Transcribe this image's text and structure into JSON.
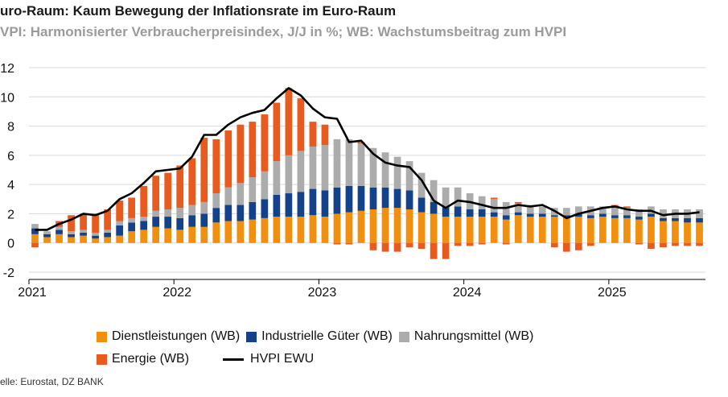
{
  "title": "uro-Raum: Kaum Bewegung der  Inflationsrate im Euro-Raum",
  "subtitle": "VPI: Harmonisierter Verbraucherpreisindex, J/J in %; WB: Wachstumsbeitrag zum HVPI",
  "source": "elle: Eurostat, DZ BANK",
  "legend": {
    "services": "Dienstleistungen (WB)",
    "goods": "Industrielle Güter (WB)",
    "food": "Nahrungsmittel (WB)",
    "energy": "Energie (WB)",
    "hvpi": "HVPI EWU"
  },
  "chart_data": {
    "type": "bar",
    "stacked": true,
    "x_tick_labels": [
      "2021",
      "2022",
      "2023",
      "2024",
      "2025"
    ],
    "ylim": [
      -2,
      12
    ],
    "yticks": [
      -2,
      0,
      2,
      4,
      6,
      8,
      10,
      12
    ],
    "ytick_labels": [
      "-2",
      "0",
      "2",
      "4",
      "6",
      "8",
      "10",
      "12"
    ],
    "grid": "horizontal",
    "legend_position": "bottom",
    "colors": {
      "services": "#f0900e",
      "goods": "#13428a",
      "food": "#acacac",
      "energy": "#e85a1e",
      "hvpi": "#000000"
    },
    "categories": [
      "2021-01",
      "2021-02",
      "2021-03",
      "2021-04",
      "2021-05",
      "2021-06",
      "2021-07",
      "2021-08",
      "2021-09",
      "2021-10",
      "2021-11",
      "2021-12",
      "2022-01",
      "2022-02",
      "2022-03",
      "2022-04",
      "2022-05",
      "2022-06",
      "2022-07",
      "2022-08",
      "2022-09",
      "2022-10",
      "2022-11",
      "2022-12",
      "2023-01",
      "2023-02",
      "2023-03",
      "2023-04",
      "2023-05",
      "2023-06",
      "2023-07",
      "2023-08",
      "2023-09",
      "2023-10",
      "2023-11",
      "2023-12",
      "2024-01",
      "2024-02",
      "2024-03",
      "2024-04",
      "2024-05",
      "2024-06",
      "2024-07",
      "2024-08",
      "2024-09",
      "2024-10",
      "2024-11",
      "2024-12",
      "2025-01",
      "2025-02",
      "2025-03",
      "2025-04",
      "2025-05",
      "2025-06",
      "2025-07",
      "2025-08"
    ],
    "series": [
      {
        "key": "services",
        "values": [
          0.6,
          0.4,
          0.6,
          0.4,
          0.5,
          0.3,
          0.4,
          0.5,
          0.8,
          0.9,
          1.1,
          1.0,
          0.9,
          1.1,
          1.1,
          1.4,
          1.5,
          1.5,
          1.6,
          1.7,
          1.8,
          1.8,
          1.8,
          1.9,
          1.8,
          2.0,
          2.1,
          2.2,
          2.3,
          2.4,
          2.4,
          2.3,
          2.1,
          2.0,
          1.8,
          1.8,
          1.8,
          1.8,
          1.8,
          1.6,
          1.9,
          1.8,
          1.8,
          1.8,
          1.8,
          1.8,
          1.7,
          1.8,
          1.7,
          1.7,
          1.6,
          1.8,
          1.5,
          1.5,
          1.4,
          1.4
        ]
      },
      {
        "key": "goods",
        "values": [
          0.4,
          0.2,
          0.3,
          0.2,
          0.2,
          0.2,
          0.3,
          0.7,
          0.6,
          0.6,
          0.7,
          0.8,
          0.8,
          0.8,
          0.9,
          1.0,
          1.1,
          1.1,
          1.2,
          1.3,
          1.5,
          1.6,
          1.7,
          1.8,
          1.8,
          1.8,
          1.8,
          1.7,
          1.5,
          1.4,
          1.3,
          1.3,
          1.0,
          0.8,
          0.7,
          0.7,
          0.5,
          0.5,
          0.3,
          0.3,
          0.2,
          0.2,
          0.2,
          0.1,
          0.1,
          0.2,
          0.2,
          0.2,
          0.2,
          0.2,
          0.2,
          0.2,
          0.2,
          0.2,
          0.3,
          0.3
        ]
      },
      {
        "key": "food",
        "values": [
          0.3,
          0.2,
          0.2,
          0.2,
          0.2,
          0.2,
          0.2,
          0.3,
          0.3,
          0.3,
          0.4,
          0.5,
          0.7,
          0.7,
          0.8,
          1.0,
          1.2,
          1.5,
          1.7,
          1.9,
          2.3,
          2.6,
          2.8,
          2.9,
          3.1,
          3.3,
          3.2,
          2.9,
          2.7,
          2.4,
          2.2,
          2.0,
          1.7,
          1.5,
          1.3,
          1.3,
          1.1,
          0.9,
          0.9,
          0.9,
          0.6,
          0.6,
          0.5,
          0.5,
          0.5,
          0.5,
          0.6,
          0.5,
          0.5,
          0.5,
          0.5,
          0.5,
          0.6,
          0.6,
          0.6,
          0.6
        ]
      },
      {
        "key": "energy",
        "values": [
          -0.3,
          0.0,
          0.4,
          1.1,
          1.1,
          1.3,
          1.4,
          1.4,
          1.4,
          2.1,
          2.4,
          2.5,
          2.9,
          3.2,
          4.4,
          3.7,
          3.9,
          4.0,
          3.8,
          3.9,
          4.0,
          4.6,
          3.6,
          1.7,
          1.4,
          -0.1,
          -0.1,
          0.1,
          -0.5,
          -0.6,
          -0.6,
          -0.3,
          -0.4,
          -1.1,
          -1.1,
          -0.2,
          -0.2,
          -0.1,
          0.1,
          -0.1,
          0.1,
          0.0,
          0.0,
          -0.3,
          -0.6,
          -0.5,
          -0.2,
          0.0,
          0.2,
          0.1,
          -0.1,
          -0.4,
          -0.3,
          -0.2,
          -0.2,
          -0.2
        ]
      },
      {
        "key": "hvpi",
        "type": "line",
        "values": [
          0.9,
          0.9,
          1.3,
          1.6,
          2.0,
          1.9,
          2.2,
          3.0,
          3.4,
          4.1,
          4.9,
          5.0,
          5.1,
          5.9,
          7.4,
          7.4,
          8.1,
          8.6,
          8.9,
          9.1,
          9.9,
          10.6,
          10.1,
          9.2,
          8.6,
          8.5,
          6.9,
          7.0,
          6.1,
          5.5,
          5.3,
          5.2,
          4.3,
          2.9,
          2.4,
          2.9,
          2.8,
          2.6,
          2.4,
          2.4,
          2.6,
          2.5,
          2.6,
          2.2,
          1.7,
          2.0,
          2.2,
          2.4,
          2.5,
          2.3,
          2.2,
          2.2,
          1.9,
          2.0,
          2.0,
          2.1
        ]
      }
    ]
  }
}
